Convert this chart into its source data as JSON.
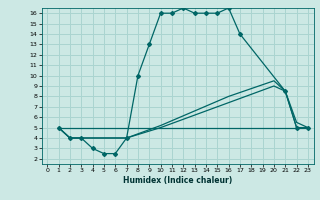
{
  "title": "",
  "xlabel": "Humidex (Indice chaleur)",
  "bg_color": "#cce8e4",
  "grid_color": "#aad4d0",
  "line_color": "#006666",
  "xlim": [
    -0.5,
    23.5
  ],
  "ylim": [
    1.5,
    16.5
  ],
  "xticks": [
    0,
    1,
    2,
    3,
    4,
    5,
    6,
    7,
    8,
    9,
    10,
    11,
    12,
    13,
    14,
    15,
    16,
    17,
    18,
    19,
    20,
    21,
    22,
    23
  ],
  "yticks": [
    2,
    3,
    4,
    5,
    6,
    7,
    8,
    9,
    10,
    11,
    12,
    13,
    14,
    15,
    16
  ],
  "lines": [
    {
      "x": [
        1,
        2,
        3,
        4,
        5,
        6,
        7,
        8,
        9,
        10,
        11,
        12,
        13,
        14,
        15,
        16,
        17,
        21,
        22,
        23
      ],
      "y": [
        5,
        4,
        4,
        3,
        2.5,
        2.5,
        4,
        10,
        13,
        16,
        16,
        16.5,
        16,
        16,
        16,
        16.5,
        14,
        8.5,
        5,
        5
      ],
      "marker": "D",
      "markersize": 2.0,
      "linewidth": 0.9
    },
    {
      "x": [
        1,
        2,
        3,
        7,
        10,
        15,
        20,
        21,
        22,
        23
      ],
      "y": [
        5,
        4,
        4,
        4,
        5,
        7,
        9,
        8.5,
        5,
        5
      ],
      "marker": null,
      "markersize": 0,
      "linewidth": 0.9
    },
    {
      "x": [
        1,
        2,
        3,
        7,
        10,
        16,
        20,
        21,
        22,
        23
      ],
      "y": [
        5,
        4,
        4,
        4,
        5.2,
        8,
        9.5,
        8.5,
        5.5,
        5
      ],
      "marker": null,
      "markersize": 0,
      "linewidth": 0.9
    },
    {
      "x": [
        1,
        23
      ],
      "y": [
        5,
        5
      ],
      "marker": null,
      "markersize": 0,
      "linewidth": 0.9
    }
  ]
}
